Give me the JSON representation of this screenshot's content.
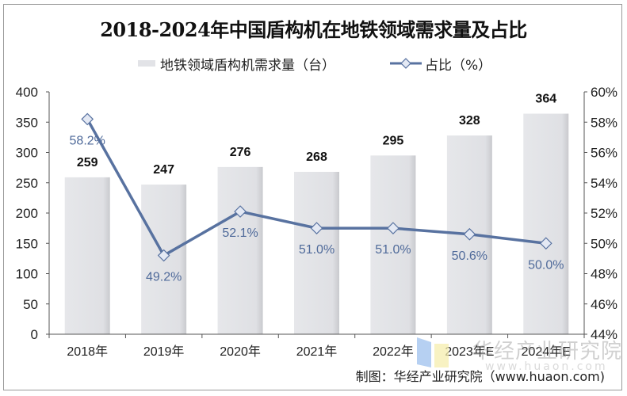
{
  "title": "2018-2024年中国盾构机在地铁领域需求量及占比",
  "legend": {
    "bar_label": "地铁领域盾构机需求量（台）",
    "line_label": "占比（%）"
  },
  "source": "制图：华经产业研究院（www.huaon.com)",
  "watermark": {
    "text": "华经产业研究院",
    "url": "www.huaon.com"
  },
  "colors": {
    "bar": "#e2e3e7",
    "line": "#5872a0",
    "marker_fill": "#e4e9f4",
    "pct_label": "#4f6a9a"
  },
  "chart_data": {
    "type": "bar+line",
    "title": "2018-2024年中国盾构机在地铁领域需求量及占比",
    "categories": [
      "2018年",
      "2019年",
      "2020年",
      "2021年",
      "2022年",
      "2023年E",
      "2024年E"
    ],
    "series": [
      {
        "name": "地铁领域盾构机需求量（台）",
        "type": "bar",
        "axis": "left",
        "values": [
          259,
          247,
          276,
          268,
          295,
          328,
          364
        ],
        "labels": [
          "259",
          "247",
          "276",
          "268",
          "295",
          "328",
          "364"
        ]
      },
      {
        "name": "占比（%）",
        "type": "line",
        "axis": "right",
        "values": [
          58.2,
          49.2,
          52.1,
          51.0,
          51.0,
          50.6,
          50.0
        ],
        "labels": [
          "58.2%",
          "49.2%",
          "52.1%",
          "51.0%",
          "51.0%",
          "50.6%",
          "50.0%"
        ]
      }
    ],
    "y_left": {
      "range": [
        0,
        400
      ],
      "ticks": [
        "0",
        "50",
        "100",
        "150",
        "200",
        "250",
        "300",
        "350",
        "400"
      ]
    },
    "y_right": {
      "range": [
        44,
        60
      ],
      "ticks": [
        "44%",
        "46%",
        "48%",
        "50%",
        "52%",
        "54%",
        "56%",
        "58%",
        "60%"
      ]
    },
    "legend_position": "top",
    "grid": false
  }
}
